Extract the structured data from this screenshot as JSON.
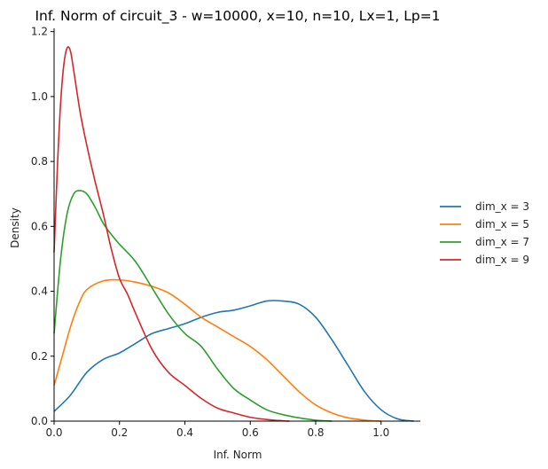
{
  "chart_data": {
    "type": "line",
    "title": "Inf. Norm of circuit_3 - w=10000, x=10, n=10, Lx=1, Lp=1",
    "xlabel": "Inf. Norm",
    "ylabel": "Density",
    "xlim": [
      0,
      1.12
    ],
    "ylim": [
      0,
      1.21
    ],
    "xticks": [
      "0.0",
      "0.2",
      "0.4",
      "0.6",
      "0.8",
      "1.0"
    ],
    "yticks": [
      "0.0",
      "0.2",
      "0.4",
      "0.6",
      "0.8",
      "1.0",
      "1.2"
    ],
    "grid": false,
    "legend_position": "right",
    "series": [
      {
        "name": "dim_x = 3",
        "color": "#1f77b4",
        "points": [
          [
            0.0,
            0.03
          ],
          [
            0.05,
            0.08
          ],
          [
            0.1,
            0.15
          ],
          [
            0.15,
            0.19
          ],
          [
            0.2,
            0.21
          ],
          [
            0.25,
            0.24
          ],
          [
            0.3,
            0.27
          ],
          [
            0.35,
            0.285
          ],
          [
            0.4,
            0.3
          ],
          [
            0.45,
            0.32
          ],
          [
            0.5,
            0.335
          ],
          [
            0.55,
            0.342
          ],
          [
            0.6,
            0.355
          ],
          [
            0.65,
            0.37
          ],
          [
            0.7,
            0.37
          ],
          [
            0.75,
            0.36
          ],
          [
            0.8,
            0.32
          ],
          [
            0.85,
            0.25
          ],
          [
            0.9,
            0.17
          ],
          [
            0.95,
            0.09
          ],
          [
            1.0,
            0.035
          ],
          [
            1.05,
            0.007
          ],
          [
            1.1,
            0.0
          ]
        ]
      },
      {
        "name": "dim_x = 5",
        "color": "#ff7f0e",
        "points": [
          [
            0.0,
            0.11
          ],
          [
            0.025,
            0.2
          ],
          [
            0.05,
            0.29
          ],
          [
            0.075,
            0.36
          ],
          [
            0.1,
            0.405
          ],
          [
            0.15,
            0.432
          ],
          [
            0.2,
            0.435
          ],
          [
            0.25,
            0.428
          ],
          [
            0.3,
            0.415
          ],
          [
            0.35,
            0.395
          ],
          [
            0.4,
            0.36
          ],
          [
            0.45,
            0.32
          ],
          [
            0.5,
            0.29
          ],
          [
            0.55,
            0.26
          ],
          [
            0.6,
            0.23
          ],
          [
            0.65,
            0.19
          ],
          [
            0.7,
            0.14
          ],
          [
            0.75,
            0.09
          ],
          [
            0.8,
            0.05
          ],
          [
            0.85,
            0.025
          ],
          [
            0.9,
            0.01
          ],
          [
            0.95,
            0.003
          ],
          [
            1.0,
            0.0
          ]
        ]
      },
      {
        "name": "dim_x = 7",
        "color": "#2ca02c",
        "points": [
          [
            0.0,
            0.27
          ],
          [
            0.02,
            0.5
          ],
          [
            0.04,
            0.64
          ],
          [
            0.06,
            0.7
          ],
          [
            0.08,
            0.71
          ],
          [
            0.1,
            0.7
          ],
          [
            0.125,
            0.66
          ],
          [
            0.15,
            0.61
          ],
          [
            0.175,
            0.575
          ],
          [
            0.2,
            0.545
          ],
          [
            0.25,
            0.49
          ],
          [
            0.3,
            0.41
          ],
          [
            0.35,
            0.33
          ],
          [
            0.4,
            0.27
          ],
          [
            0.45,
            0.23
          ],
          [
            0.5,
            0.16
          ],
          [
            0.55,
            0.1
          ],
          [
            0.6,
            0.065
          ],
          [
            0.65,
            0.035
          ],
          [
            0.7,
            0.02
          ],
          [
            0.75,
            0.01
          ],
          [
            0.8,
            0.003
          ],
          [
            0.85,
            0.0
          ]
        ]
      },
      {
        "name": "dim_x = 9",
        "color": "#d62728",
        "points": [
          [
            0.0,
            0.52
          ],
          [
            0.01,
            0.78
          ],
          [
            0.02,
            0.98
          ],
          [
            0.03,
            1.1
          ],
          [
            0.04,
            1.15
          ],
          [
            0.05,
            1.14
          ],
          [
            0.06,
            1.08
          ],
          [
            0.08,
            0.95
          ],
          [
            0.1,
            0.85
          ],
          [
            0.125,
            0.74
          ],
          [
            0.15,
            0.64
          ],
          [
            0.175,
            0.53
          ],
          [
            0.2,
            0.44
          ],
          [
            0.225,
            0.39
          ],
          [
            0.25,
            0.33
          ],
          [
            0.3,
            0.22
          ],
          [
            0.35,
            0.15
          ],
          [
            0.4,
            0.11
          ],
          [
            0.45,
            0.07
          ],
          [
            0.5,
            0.04
          ],
          [
            0.55,
            0.025
          ],
          [
            0.6,
            0.012
          ],
          [
            0.65,
            0.005
          ],
          [
            0.7,
            0.001
          ],
          [
            0.72,
            0.0
          ]
        ]
      }
    ]
  }
}
